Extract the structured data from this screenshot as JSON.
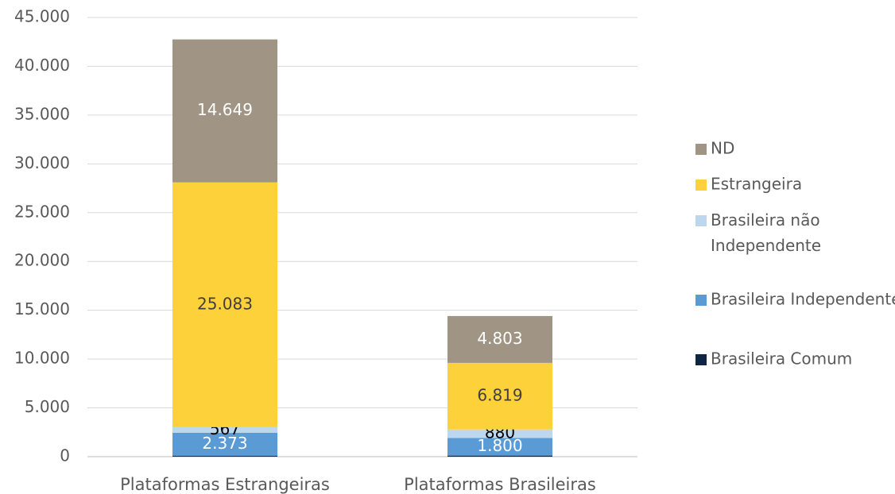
{
  "chart_data": {
    "type": "stacked_bar",
    "categories": [
      "Plataformas Estrangeiras",
      "Plataformas Brasileiras"
    ],
    "series": [
      {
        "name": "Brasileira Comum",
        "color": "#0f2544",
        "values": [
          80,
          110
        ]
      },
      {
        "name": "Brasileira Independente",
        "color": "#5b9bd5",
        "values": [
          2373,
          1800
        ],
        "value_labels": [
          "2.373",
          "1.800"
        ]
      },
      {
        "name": "Brasileira não Independente",
        "color": "#bdd7ee",
        "values": [
          567,
          880
        ],
        "value_labels": [
          "567",
          "880"
        ]
      },
      {
        "name": "Estrangeira",
        "color": "#fdd13a",
        "values": [
          25083,
          6819
        ],
        "value_labels": [
          "25.083",
          "6.819"
        ]
      },
      {
        "name": "ND",
        "color": "#a09585",
        "values": [
          14649,
          4803
        ],
        "value_labels": [
          "14.649",
          "4.803"
        ]
      }
    ],
    "ylim": [
      0,
      45000
    ],
    "yticks": [
      0,
      {
        "value": 5000,
        "label": "5.000"
      },
      {
        "value": 10000,
        "label": "10.000"
      },
      {
        "value": 15000,
        "label": "15.000"
      },
      {
        "value": 20000,
        "label": "20.000"
      },
      {
        "value": 25000,
        "label": "25.000"
      },
      {
        "value": 30000,
        "label": "30.000"
      },
      {
        "value": 35000,
        "label": "35.000"
      },
      {
        "value": 40000,
        "label": "40.000"
      },
      {
        "value": 45000,
        "label": "45.000"
      }
    ],
    "grid": true,
    "legend": "right"
  }
}
